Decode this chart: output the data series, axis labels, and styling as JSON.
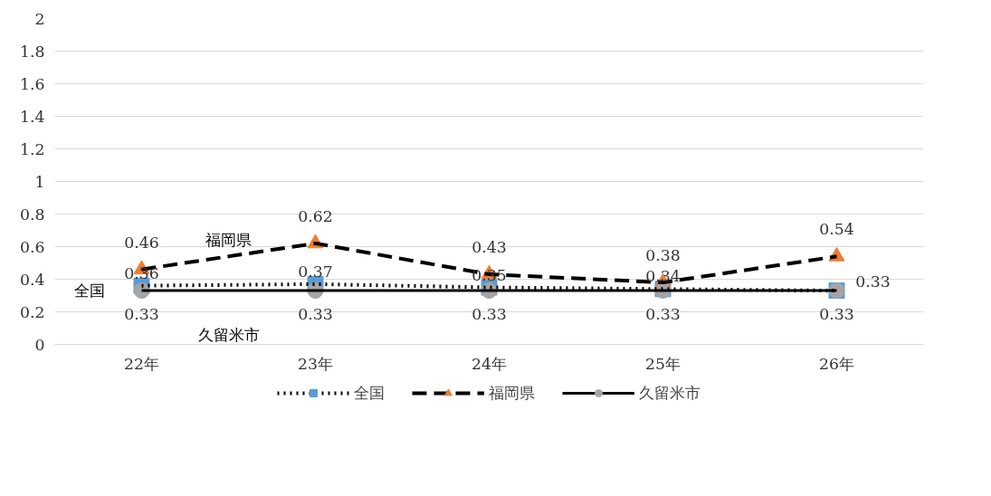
{
  "chart_data": {
    "type": "line",
    "categories": [
      "22年",
      "23年",
      "24年",
      "25年",
      "26年"
    ],
    "series": [
      {
        "name": "全国",
        "color": "#5b9bd5",
        "marker": "square",
        "line_style": "dotted",
        "values": [
          0.36,
          0.37,
          0.35,
          0.34,
          0.33
        ]
      },
      {
        "name": "福岡県",
        "color": "#ed7d31",
        "marker": "triangle",
        "line_style": "dashed",
        "values": [
          0.46,
          0.62,
          0.43,
          0.38,
          0.54
        ]
      },
      {
        "name": "久留米市",
        "color": "#a5a5a5",
        "marker": "circle",
        "line_style": "solid",
        "values": [
          0.33,
          0.33,
          0.33,
          0.33,
          0.33
        ]
      }
    ],
    "ylim": [
      0,
      2
    ],
    "yticks": [
      0,
      {
        "value": 0.2,
        "label": "0.2"
      },
      {
        "value": 0.4,
        "label": "0.4"
      },
      {
        "value": 0.6,
        "label": "0.6"
      },
      {
        "value": 0.8,
        "label": "0.8"
      },
      1,
      {
        "value": 1.2,
        "label": "1.2"
      },
      {
        "value": 1.4,
        "label": "1.4"
      },
      {
        "value": 1.6,
        "label": "1.6"
      },
      {
        "value": 1.8,
        "label": "1.8"
      },
      2
    ],
    "annotations": [
      "福岡県",
      "全国",
      "久留米市"
    ],
    "grid": "y",
    "legend": "bottom",
    "data_labels": true
  }
}
